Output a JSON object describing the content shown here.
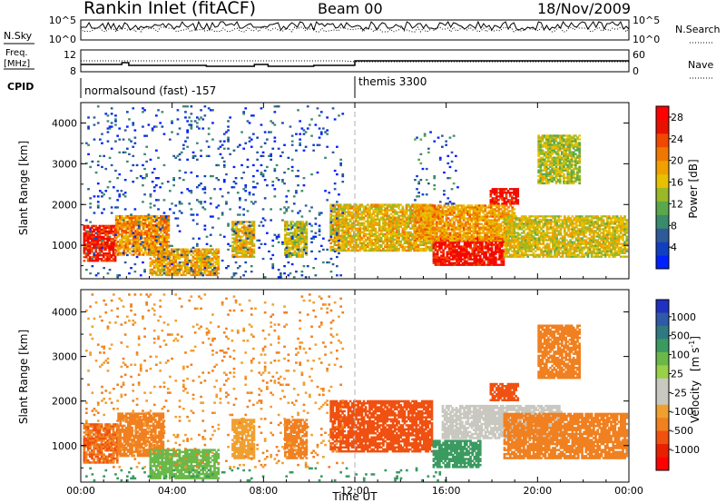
{
  "header": {
    "title": "Rankin Inlet (fitACF)",
    "beam": "Beam 00",
    "date": "18/Nov/2009"
  },
  "meta_panels": {
    "nsky": {
      "label": "N.Sky",
      "ticks": [
        "10^5",
        "10^0"
      ]
    },
    "nsearch": {
      "label": "N.Search",
      "ticks": [
        "10^5",
        "10^0"
      ]
    },
    "freq": {
      "label_line1": "Freq.",
      "label_line2": "[MHz]",
      "ticks": [
        "12",
        "8"
      ]
    },
    "nave": {
      "label": "Nave",
      "ticks": [
        "60",
        "0"
      ]
    },
    "cpid": {
      "label": "CPID",
      "modes": [
        {
          "text": "normalsound (fast) -157",
          "start_hour": 0,
          "end_hour": 12
        },
        {
          "text": "themis 3300",
          "start_hour": 12,
          "end_hour": 24
        }
      ]
    }
  },
  "chart_data": [
    {
      "type": "heatmap",
      "title": "",
      "xlabel": "Time UT",
      "ylabel": "Slant Range [km]",
      "xlim": [
        0,
        24
      ],
      "ylim": [
        180,
        4500
      ],
      "x_ticks": [
        "00:00",
        "04:00",
        "08:00",
        "12:00",
        "16:00",
        "20:00",
        "00:00"
      ],
      "x_tick_hours": [
        0,
        4,
        8,
        12,
        16,
        20,
        24
      ],
      "y_ticks": [
        1000,
        2000,
        3000,
        4000
      ],
      "marker_line_hour": 12,
      "colorbar": {
        "label": "Power [dB]",
        "range": [
          0,
          30
        ],
        "ticks": [
          "4",
          "8",
          "12",
          "16",
          "20",
          "24",
          "28"
        ],
        "tick_values": [
          4,
          8,
          12,
          16,
          20,
          24,
          28
        ],
        "colors": [
          "#0020ff",
          "#1040c0",
          "#2f5a9a",
          "#3a8a6c",
          "#5aa84a",
          "#9ab828",
          "#e8c000",
          "#f0a000",
          "#f07800",
          "#f04800",
          "#e81000",
          "#ff0000"
        ]
      },
      "regions": [
        {
          "t0": 0.1,
          "t1": 1.5,
          "r0": 600,
          "r1": 1500,
          "level": 26
        },
        {
          "t0": 1.5,
          "t1": 3.8,
          "r0": 750,
          "r1": 1700,
          "level": 20
        },
        {
          "t0": 3.0,
          "t1": 6.0,
          "r0": 250,
          "r1": 900,
          "level": 18
        },
        {
          "t0": 6.6,
          "t1": 7.6,
          "r0": 700,
          "r1": 1600,
          "level": 17
        },
        {
          "t0": 8.9,
          "t1": 9.9,
          "r0": 700,
          "r1": 1600,
          "level": 15
        },
        {
          "t0": 10.9,
          "t1": 15.4,
          "r0": 850,
          "r1": 2000,
          "level": 17
        },
        {
          "t0": 15.4,
          "t1": 18.5,
          "r0": 500,
          "r1": 1200,
          "level": 27
        },
        {
          "t0": 14.6,
          "t1": 19.0,
          "r0": 1100,
          "r1": 2000,
          "level": 19
        },
        {
          "t0": 18.5,
          "t1": 23.9,
          "r0": 700,
          "r1": 1700,
          "level": 16
        },
        {
          "t0": 17.9,
          "t1": 19.1,
          "r0": 2000,
          "r1": 2400,
          "level": 27
        },
        {
          "t0": 20.0,
          "t1": 21.8,
          "r0": 2500,
          "r1": 3700,
          "level": 14
        },
        {
          "t0": 0.2,
          "t1": 11.5,
          "r0": 200,
          "r1": 4400,
          "level": 5,
          "sparse": true
        },
        {
          "t0": 14.5,
          "t1": 16.5,
          "r0": 2000,
          "r1": 3800,
          "level": 6,
          "sparse": true
        }
      ]
    },
    {
      "type": "heatmap",
      "title": "",
      "xlabel": "Time UT",
      "ylabel": "Slant Range [km]",
      "xlim": [
        0,
        24
      ],
      "ylim": [
        180,
        4500
      ],
      "x_ticks": [
        "00:00",
        "04:00",
        "08:00",
        "12:00",
        "16:00",
        "20:00",
        "00:00"
      ],
      "x_tick_hours": [
        0,
        4,
        8,
        12,
        16,
        20,
        24
      ],
      "y_ticks": [
        1000,
        2000,
        3000,
        4000
      ],
      "marker_line_hour": 12,
      "colorbar": {
        "label": "Velocity [m s-1]",
        "label_main": "Velocity",
        "label_unit": "[m s",
        "label_exp": "-1",
        "label_close": "]",
        "ticks": [
          "1000",
          "500",
          "100",
          "25",
          "-25",
          "-100",
          "-500",
          "-1000"
        ],
        "colors": [
          "#2030c0",
          "#2e5aa8",
          "#2f7a80",
          "#3a9a60",
          "#6ab84a",
          "#98d048",
          "#c8c8c0",
          "#c8c8c0",
          "#f0a030",
          "#f08020",
          "#f05010",
          "#e82000",
          "#ff0000"
        ]
      },
      "regions": [
        {
          "t0": 0.1,
          "t1": 1.6,
          "r0": 600,
          "r1": 1500,
          "level": -250
        },
        {
          "t0": 1.6,
          "t1": 3.6,
          "r0": 750,
          "r1": 1700,
          "level": -150
        },
        {
          "t0": 3.0,
          "t1": 6.0,
          "r0": 250,
          "r1": 900,
          "level": 60
        },
        {
          "t0": 6.6,
          "t1": 7.6,
          "r0": 700,
          "r1": 1600,
          "level": -80
        },
        {
          "t0": 8.9,
          "t1": 9.9,
          "r0": 700,
          "r1": 1600,
          "level": -120
        },
        {
          "t0": 10.9,
          "t1": 15.4,
          "r0": 850,
          "r1": 2000,
          "level": -300
        },
        {
          "t0": 15.4,
          "t1": 17.5,
          "r0": 500,
          "r1": 1100,
          "level": 150
        },
        {
          "t0": 15.8,
          "t1": 21.0,
          "r0": 1150,
          "r1": 1900,
          "level": 0
        },
        {
          "t0": 18.5,
          "t1": 23.9,
          "r0": 700,
          "r1": 1700,
          "level": -200
        },
        {
          "t0": 17.9,
          "t1": 19.1,
          "r0": 2000,
          "r1": 2400,
          "level": -300
        },
        {
          "t0": 20.0,
          "t1": 21.8,
          "r0": 2500,
          "r1": 3700,
          "level": -150
        },
        {
          "t0": 0.2,
          "t1": 16.0,
          "r0": 200,
          "r1": 500,
          "level": 150,
          "sparse": true
        },
        {
          "t0": 0.2,
          "t1": 11.5,
          "r0": 500,
          "r1": 4400,
          "level": -100,
          "sparse": true
        }
      ]
    }
  ]
}
